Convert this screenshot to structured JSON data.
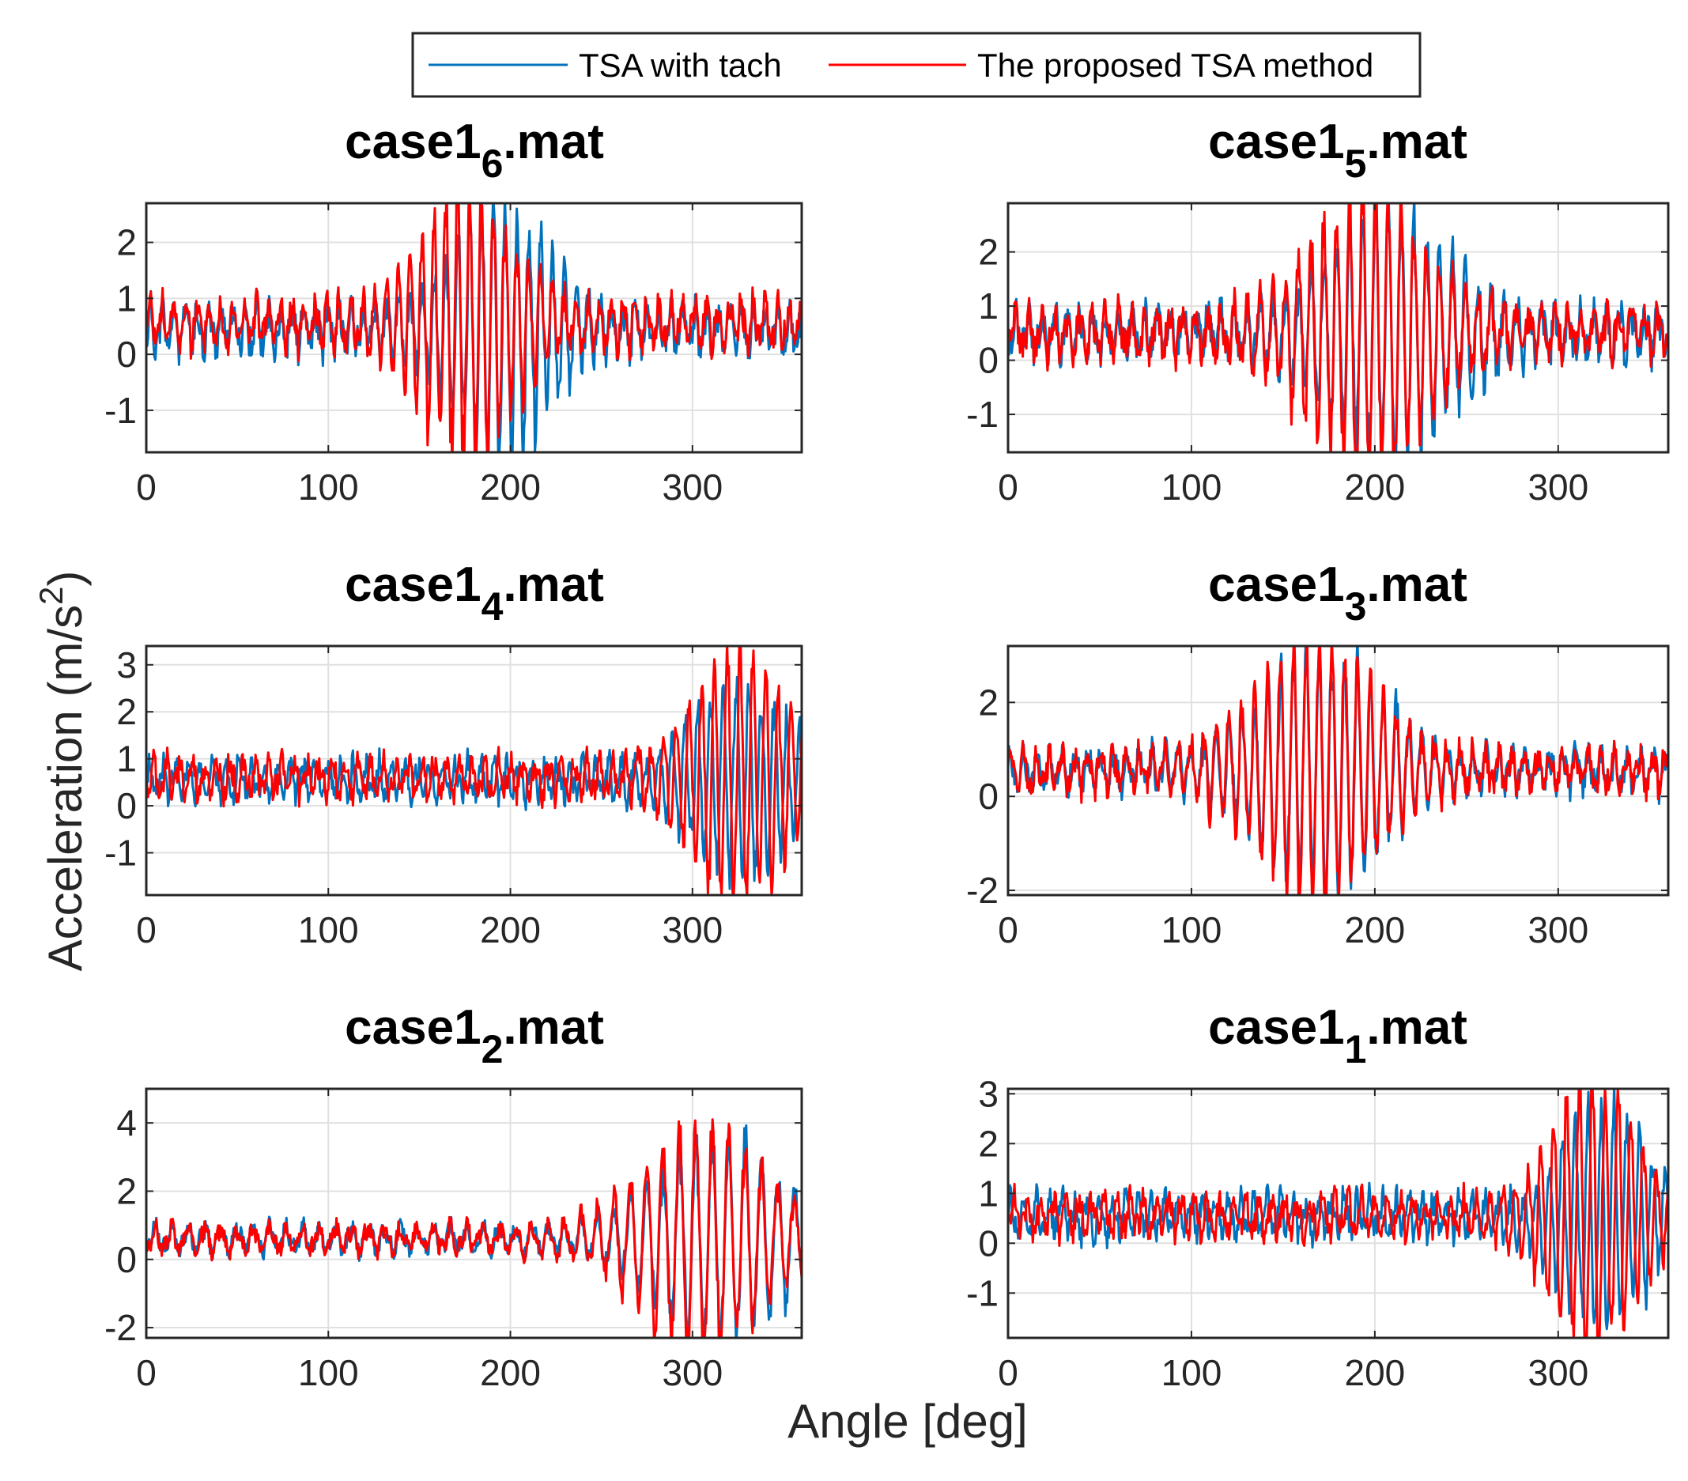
{
  "chart_data": {
    "type": "line",
    "xlabel": "Angle [deg]",
    "ylabel": "Acceleration (m/s",
    "ylabel_sup": "2",
    "ylabel_end": ")",
    "legend": {
      "placement": "top-center",
      "entries": [
        {
          "name": "TSA with tach",
          "color": "#0072BD"
        },
        {
          "name": "The proposed TSA method",
          "color": "#FF0000"
        }
      ]
    },
    "grid": true,
    "subplots": [
      {
        "id": "case1_6",
        "title_base": "case1",
        "title_sub": "6",
        "title_end": ".mat",
        "xlim": [
          0,
          360
        ],
        "ylim": [
          -1.75,
          2.7
        ],
        "xticks": [
          0,
          100,
          200,
          300
        ],
        "yticks": [
          -1,
          0,
          1,
          2
        ],
        "series": [
          {
            "name": "TSA with tach",
            "seed": 11,
            "base": 0.45,
            "noise": 0.55,
            "burst_center": 195,
            "burst_width": 35,
            "burst_amp": 2.0,
            "period": 6.5
          },
          {
            "name": "The proposed TSA method",
            "seed": 23,
            "base": 0.55,
            "noise": 0.5,
            "burst_center": 175,
            "burst_width": 35,
            "burst_amp": 2.1,
            "period": 6.5
          }
        ]
      },
      {
        "id": "case1_5",
        "title_base": "case1",
        "title_sub": "5",
        "title_end": ".mat",
        "xlim": [
          0,
          360
        ],
        "ylim": [
          -1.7,
          2.9
        ],
        "xticks": [
          0,
          100,
          200,
          300
        ],
        "yticks": [
          -1,
          0,
          1,
          2
        ],
        "series": [
          {
            "name": "TSA with tach",
            "seed": 31,
            "base": 0.5,
            "noise": 0.6,
            "burst_center": 210,
            "burst_width": 45,
            "burst_amp": 2.0,
            "period": 7
          },
          {
            "name": "The proposed TSA method",
            "seed": 37,
            "base": 0.5,
            "noise": 0.6,
            "burst_center": 195,
            "burst_width": 45,
            "burst_amp": 2.2,
            "period": 7
          }
        ]
      },
      {
        "id": "case1_4",
        "title_base": "case1",
        "title_sub": "4",
        "title_end": ".mat",
        "xlim": [
          0,
          360
        ],
        "ylim": [
          -1.9,
          3.4
        ],
        "xticks": [
          0,
          100,
          200,
          300
        ],
        "yticks": [
          -1,
          0,
          1,
          2,
          3
        ],
        "series": [
          {
            "name": "TSA with tach",
            "seed": 41,
            "base": 0.55,
            "noise": 0.5,
            "burst_center": 325,
            "burst_width": 35,
            "burst_amp": 1.7,
            "period": 7
          },
          {
            "name": "The proposed TSA method",
            "seed": 43,
            "base": 0.6,
            "noise": 0.5,
            "burst_center": 325,
            "burst_width": 35,
            "burst_amp": 2.3,
            "period": 7
          }
        ]
      },
      {
        "id": "case1_3",
        "title_base": "case1",
        "title_sub": "3",
        "title_end": ".mat",
        "xlim": [
          0,
          360
        ],
        "ylim": [
          -2.1,
          3.2
        ],
        "xticks": [
          0,
          100,
          200,
          300
        ],
        "yticks": [
          -2,
          0,
          2
        ],
        "series": [
          {
            "name": "TSA with tach",
            "seed": 53,
            "base": 0.55,
            "noise": 0.55,
            "burst_center": 172,
            "burst_width": 45,
            "burst_amp": 2.2,
            "period": 7
          },
          {
            "name": "The proposed TSA method",
            "seed": 59,
            "base": 0.55,
            "noise": 0.55,
            "burst_center": 168,
            "burst_width": 45,
            "burst_amp": 2.4,
            "period": 7
          }
        ]
      },
      {
        "id": "case1_2",
        "title_base": "case1",
        "title_sub": "2",
        "title_end": ".mat",
        "xlim": [
          0,
          360
        ],
        "ylim": [
          -2.3,
          5.0
        ],
        "xticks": [
          0,
          100,
          200,
          300
        ],
        "yticks": [
          -2,
          0,
          2,
          4
        ],
        "series": [
          {
            "name": "TSA with tach",
            "seed": 61,
            "base": 0.6,
            "noise": 0.5,
            "burst_center": 315,
            "burst_width": 45,
            "burst_amp": 2.6,
            "period": 9
          },
          {
            "name": "The proposed TSA method",
            "seed": 67,
            "base": 0.6,
            "noise": 0.5,
            "burst_center": 305,
            "burst_width": 45,
            "burst_amp": 2.9,
            "period": 9
          }
        ]
      },
      {
        "id": "case1_1",
        "title_base": "case1",
        "title_sub": "1",
        "title_end": ".mat",
        "xlim": [
          0,
          360
        ],
        "ylim": [
          -1.9,
          3.1
        ],
        "xticks": [
          0,
          100,
          200,
          300
        ],
        "yticks": [
          -1,
          0,
          1,
          2,
          3
        ],
        "series": [
          {
            "name": "TSA with tach",
            "seed": 71,
            "base": 0.55,
            "noise": 0.5,
            "burst_center": 325,
            "burst_width": 30,
            "burst_amp": 1.9,
            "period": 7
          },
          {
            "name": "The proposed TSA method",
            "seed": 73,
            "base": 0.55,
            "noise": 0.5,
            "burst_center": 320,
            "burst_width": 30,
            "burst_amp": 2.4,
            "period": 7
          }
        ]
      }
    ]
  }
}
